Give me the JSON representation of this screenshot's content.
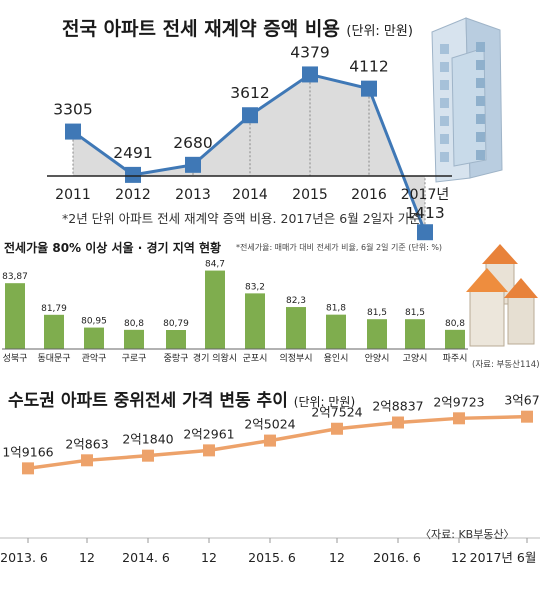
{
  "chart_data": [
    {
      "type": "area",
      "title": "전국 아파트 전세 재계약 증액 비용",
      "unit": "(단위: 만원)",
      "categories": [
        "2011",
        "2012",
        "2013",
        "2014",
        "2015",
        "2016",
        "2017년"
      ],
      "values": [
        3305,
        2491,
        2680,
        3612,
        4379,
        4112,
        1413
      ],
      "value_labels": [
        "3305",
        "2491",
        "2680",
        "3612",
        "4379",
        "4112",
        "1413"
      ],
      "ylim": [
        0,
        5000
      ],
      "footnote": "*2년 단위 아파트 전세 재계약 증액 비용. 2017년은 6월 2일자 기준",
      "colors": {
        "marker": "#3f78b6",
        "line": "#3f78b6",
        "fill": "#dcdcdc"
      }
    },
    {
      "type": "bar",
      "title": "전세가율 80% 이상 서울 · 경기 지역 현황",
      "subtitle": "*전세가율: 매매가 대비 전세가 비율, 6월 2일 기준 (단위: %)",
      "categories": [
        "성북구",
        "동대문구",
        "관악구",
        "구로구",
        "중랑구",
        "경기 의왕시",
        "군포시",
        "의정부시",
        "용인시",
        "안양시",
        "고양시",
        "파주시"
      ],
      "values": [
        83.87,
        81.79,
        80.95,
        80.8,
        80.79,
        84.7,
        83.2,
        82.3,
        81.8,
        81.5,
        81.5,
        80.8
      ],
      "value_labels": [
        "83,87",
        "81,79",
        "80,95",
        "80,8",
        "80,79",
        "84,7",
        "83,2",
        "82,3",
        "81,8",
        "81,5",
        "81,5",
        "80,8"
      ],
      "source": "(자료: 부동산114)",
      "colors": {
        "bar": "#7fad4e"
      }
    },
    {
      "type": "line",
      "title": "수도권 아파트 중위전세 가격 변동 추이",
      "unit": "(단위: 만원)",
      "categories": [
        "2013. 6",
        "12",
        "2014. 6",
        "12",
        "2015. 6",
        "12",
        "2016. 6",
        "12",
        "2017년 6월"
      ],
      "values": [
        19166,
        20863,
        21840,
        22961,
        25024,
        27524,
        28837,
        29723,
        30067
      ],
      "value_labels": [
        "1억9166",
        "2억863",
        "2억1840",
        "2억2961",
        "2억5024",
        "2억7524",
        "2억8837",
        "2억9723",
        "3억67"
      ],
      "source": "〈자료: KB부동산〉",
      "colors": {
        "marker": "#eda26a",
        "line": "#eda26a"
      }
    }
  ]
}
